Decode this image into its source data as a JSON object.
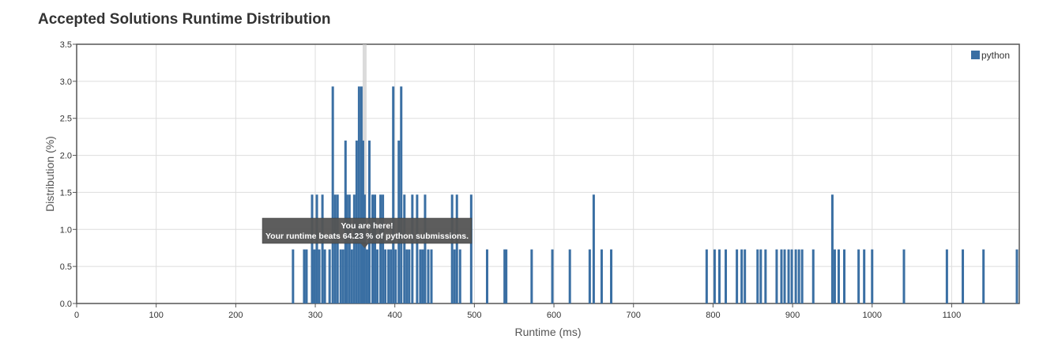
{
  "page": {
    "title": "Accepted Solutions Runtime Distribution"
  },
  "colors": {
    "bar": "#3a6fa3",
    "grid": "#dddddd",
    "axis": "#555555",
    "tooltip_bg": "#555555",
    "tooltip_text": "#ffffff",
    "highlight_line": "#cccccc"
  },
  "chart_data": {
    "type": "bar",
    "title": "Accepted Solutions Runtime Distribution",
    "xlabel": "Runtime (ms)",
    "ylabel": "Distribution (%)",
    "xlim": [
      0,
      1185
    ],
    "ylim": [
      0,
      3.5
    ],
    "x_ticks": [
      0,
      100,
      200,
      300,
      400,
      500,
      600,
      700,
      800,
      900,
      1000,
      1100
    ],
    "y_ticks": [
      "0.0",
      "0.5",
      "1.0",
      "1.5",
      "2.0",
      "2.5",
      "3.0",
      "3.5"
    ],
    "grid": true,
    "legend_position": "top-right",
    "series": [
      {
        "name": "python",
        "x": [
          272,
          286,
          289,
          296,
          299,
          302,
          305,
          309,
          312,
          318,
          322,
          325,
          328,
          332,
          335,
          338,
          340,
          343,
          346,
          349,
          352,
          355,
          358,
          360,
          362,
          365,
          368,
          372,
          375,
          378,
          382,
          385,
          388,
          392,
          395,
          398,
          401,
          405,
          408,
          412,
          415,
          418,
          422,
          428,
          432,
          435,
          438,
          442,
          446,
          472,
          475,
          478,
          482,
          496,
          516,
          538,
          540,
          572,
          598,
          620,
          645,
          650,
          660,
          672,
          792,
          802,
          808,
          816,
          830,
          836,
          840,
          856,
          860,
          866,
          880,
          886,
          890,
          895,
          899,
          904,
          908,
          912,
          926,
          950,
          953,
          958,
          965,
          983,
          990,
          1000,
          1040,
          1094,
          1114,
          1140,
          1182
        ],
        "values": [
          0.73,
          0.73,
          0.73,
          1.47,
          0.73,
          1.47,
          0.73,
          1.47,
          0.73,
          0.73,
          2.93,
          1.47,
          1.47,
          0.73,
          0.73,
          2.2,
          1.47,
          1.47,
          0.73,
          1.47,
          2.2,
          2.93,
          2.93,
          2.2,
          1.47,
          0.73,
          2.2,
          1.47,
          1.47,
          0.73,
          1.47,
          1.47,
          0.73,
          0.73,
          0.73,
          2.93,
          0.73,
          2.2,
          2.93,
          1.47,
          0.73,
          0.73,
          1.47,
          1.47,
          0.73,
          0.73,
          1.47,
          0.73,
          0.73,
          1.47,
          0.73,
          1.47,
          0.73,
          1.47,
          0.73,
          0.73,
          0.73,
          0.73,
          0.73,
          0.73,
          0.73,
          1.47,
          0.73,
          0.73,
          0.73,
          0.73,
          0.73,
          0.73,
          0.73,
          0.73,
          0.73,
          0.73,
          0.73,
          0.73,
          0.73,
          0.73,
          0.73,
          0.73,
          0.73,
          0.73,
          0.73,
          0.73,
          0.73,
          1.47,
          0.73,
          0.73,
          0.73,
          0.73,
          0.73,
          0.73,
          0.73,
          0.73,
          0.73,
          0.73,
          0.73
        ]
      }
    ],
    "tooltip": {
      "x": 362,
      "line1": "You are here!",
      "line2": "Your runtime beats 64.23 % of python submissions."
    }
  }
}
